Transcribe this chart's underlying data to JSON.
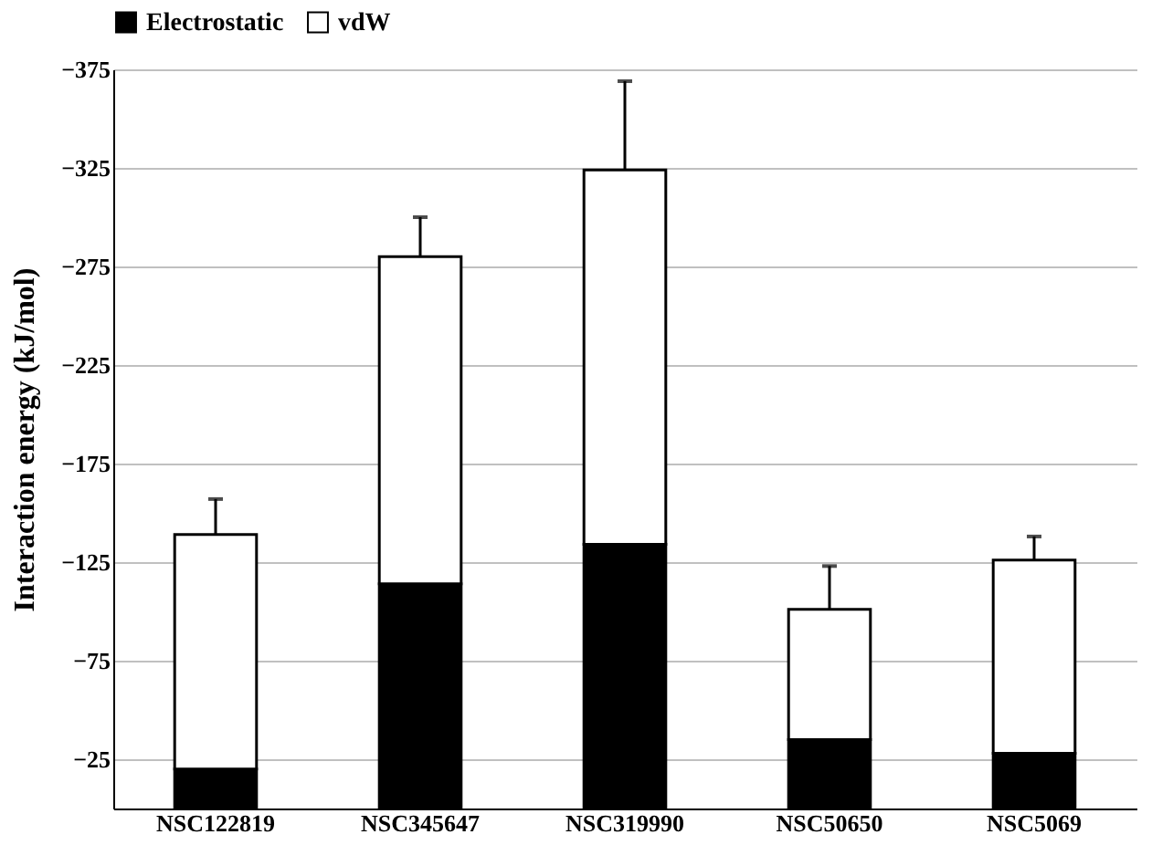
{
  "chart_data": {
    "type": "bar",
    "stacked": true,
    "ylabel": "Interaction energy (kJ/mol)",
    "categories": [
      "NSC122819",
      "NSC345647",
      "NSC319990",
      "NSC50650",
      "NSC5069"
    ],
    "series": [
      {
        "name": "Electrostatic",
        "color": "#000000",
        "values": [
          -20,
          -114,
          -134,
          -35,
          -28
        ]
      },
      {
        "name": "vdW",
        "color": "#ffffff",
        "values": [
          -119,
          -166,
          -190,
          -66,
          -98
        ],
        "errors": [
          [
            -157,
            -139
          ],
          [
            -300,
            -280
          ],
          [
            -369,
            -324
          ],
          [
            -123,
            -101
          ],
          [
            -138,
            -126
          ]
        ]
      }
    ],
    "ylim": [
      0,
      -375
    ],
    "yticks": [
      -375,
      -325,
      -275,
      -225,
      -175,
      -125,
      -75,
      -25
    ],
    "grid": "y",
    "legend": "top"
  }
}
